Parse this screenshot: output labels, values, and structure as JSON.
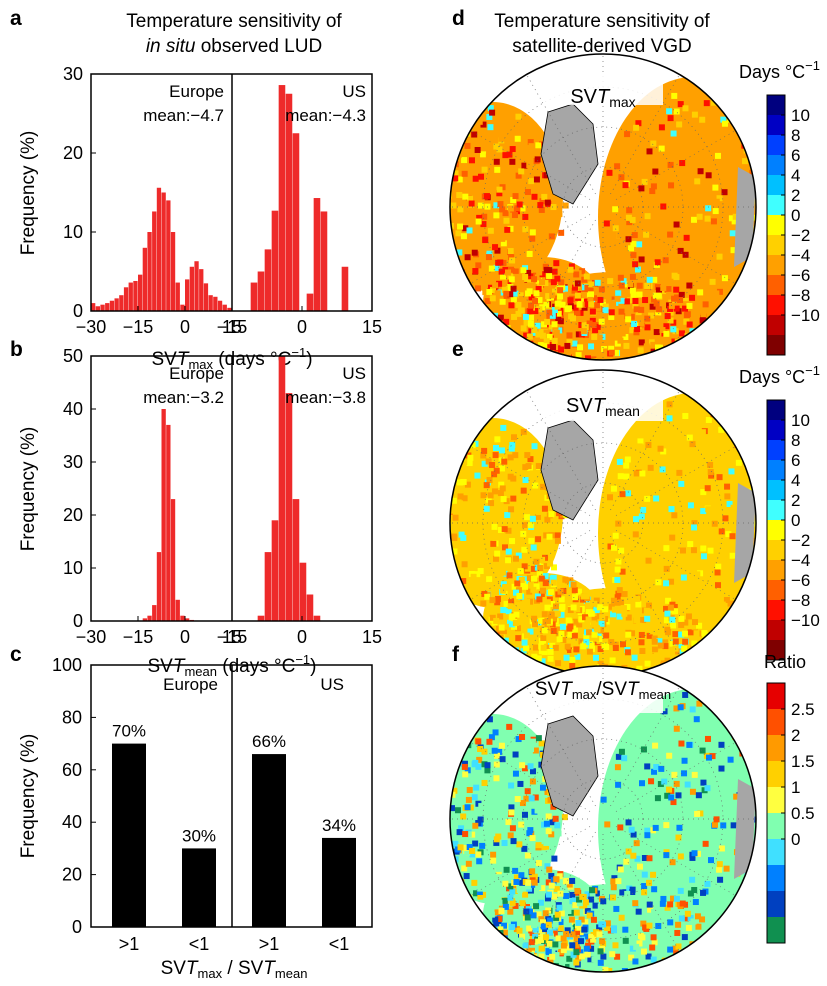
{
  "panel_letters": {
    "a": "a",
    "b": "b",
    "c": "c",
    "d": "d",
    "e": "e",
    "f": "f"
  },
  "titles": {
    "left_line1": "Temperature sensitivity of",
    "left_line2_italic": "in situ",
    "left_line2_rest": " observed LUD",
    "right_line1": "Temperature sensitivity of",
    "right_line2": "satellite-derived VGD"
  },
  "axis_text": {
    "sv": "SV",
    "T": "T",
    "sub_max": "max",
    "sub_mean": "mean",
    "units": " (days °C",
    "units_exp": "−1",
    "units_close": ")",
    "slash": " / ",
    "slash_nospace": "/"
  },
  "colorbar_text": {
    "days": "Days °C",
    "days_exp": "−1",
    "ratio": "Ratio"
  },
  "colors": {
    "bar_red": "#ee2a2a",
    "bar_black": "#000000",
    "land_gray": "#a6a6a6",
    "ocean_white": "#ffffff"
  },
  "chart_data": [
    {
      "id": "a",
      "type": "bar",
      "title": "Temperature sensitivity of in situ observed LUD",
      "xlabel": "SVTmax (days °C−1)",
      "ylabel": "Frequency (%)",
      "ylim": [
        0,
        30
      ],
      "yticks": [
        0,
        10,
        20,
        30
      ],
      "subplots": [
        {
          "name": "Europe",
          "annotation": "mean:−4.7",
          "xlim": [
            -30,
            15
          ],
          "xticks": [
            "−30",
            "−15",
            "0",
            "15"
          ],
          "bin_width": 1.5,
          "bin_starts": [
            -30,
            -28.5,
            -27,
            -25.5,
            -24,
            -22.5,
            -21,
            -19.5,
            -18,
            -16.5,
            -15,
            -13.5,
            -12,
            -10.5,
            -9,
            -7.5,
            -6,
            -4.5,
            -3,
            -1.5,
            0,
            1.5,
            3,
            4.5,
            6,
            7.5,
            9,
            10.5,
            12,
            13.5
          ],
          "values": [
            1,
            0.6,
            0.8,
            1,
            1.3,
            1.6,
            2,
            3,
            3.6,
            3.8,
            4.6,
            8,
            10,
            12.6,
            15.6,
            15,
            14,
            10,
            3.6,
            0.8,
            4,
            5.6,
            6.3,
            5.3,
            3.5,
            2,
            1.8,
            1.3,
            0.8,
            0.4
          ]
        },
        {
          "name": "US",
          "annotation": "mean:−4.3",
          "xlim": [
            -15,
            15
          ],
          "xticks": [
            "−15",
            "0",
            "15"
          ],
          "bin_width": 1.5,
          "bin_starts": [
            -11,
            -9.5,
            -8,
            -6.5,
            -5,
            -3.5,
            -2,
            -0.5,
            1,
            2.5,
            4,
            5.5,
            7,
            8.5
          ],
          "values": [
            3.6,
            5,
            7.8,
            12.7,
            28.6,
            27.5,
            22.5,
            0,
            2.2,
            14.3,
            12.6,
            0,
            0,
            5.6
          ]
        }
      ]
    },
    {
      "id": "b",
      "type": "bar",
      "xlabel": "SVTmean (days °C−1)",
      "ylabel": "Frequency (%)",
      "ylim": [
        0,
        50
      ],
      "yticks": [
        0,
        10,
        20,
        30,
        40,
        50
      ],
      "subplots": [
        {
          "name": "Europe",
          "annotation": "mean:−3.2",
          "xlim": [
            -30,
            15
          ],
          "xticks": [
            "−30",
            "−15",
            "0",
            "15"
          ],
          "bin_width": 1.5,
          "bin_starts": [
            -13.5,
            -12,
            -10.5,
            -9,
            -7.5,
            -6,
            -4.5,
            -3,
            -1.5,
            0,
            1.5,
            3
          ],
          "values": [
            0.5,
            1,
            3,
            13,
            40,
            37,
            23,
            4,
            1,
            0.5,
            0.2,
            0.1
          ]
        },
        {
          "name": "US",
          "annotation": "mean:−3.8",
          "xlim": [
            -15,
            15
          ],
          "xticks": [
            "−15",
            "0",
            "15"
          ],
          "bin_width": 1.5,
          "bin_starts": [
            -9.5,
            -8,
            -6.5,
            -5,
            -3.5,
            -2,
            -0.5,
            1,
            2.5
          ],
          "values": [
            1,
            13,
            19,
            50,
            43,
            23,
            11,
            5,
            1
          ]
        }
      ]
    },
    {
      "id": "c",
      "type": "bar",
      "xlabel": "SVTmax / SVTmean",
      "ylabel": "Frequency (%)",
      "ylim": [
        0,
        100
      ],
      "yticks": [
        0,
        20,
        40,
        60,
        80,
        100
      ],
      "subplots": [
        {
          "name": "Europe",
          "categories": [
            ">1",
            "<1"
          ],
          "values": [
            70,
            30
          ],
          "value_labels": [
            "70%",
            "30%"
          ]
        },
        {
          "name": "US",
          "categories": [
            ">1",
            "<1"
          ],
          "values": [
            66,
            34
          ],
          "value_labels": [
            "66%",
            "34%"
          ]
        }
      ]
    },
    {
      "id": "d",
      "type": "heatmap",
      "map_label": "SVTmax",
      "colorbar_label": "Days °C−1",
      "colorbar_ticks": [
        "10",
        "8",
        "6",
        "4",
        "2",
        "0",
        "−2",
        "−4",
        "−6",
        "−8",
        "−10"
      ],
      "colorbar_colors": [
        "#00007f",
        "#0000c4",
        "#0040ff",
        "#0080ff",
        "#00c0ff",
        "#40ffff",
        "#ffff00",
        "#ffd000",
        "#ffa000",
        "#ff6000",
        "#ff1000",
        "#c00000",
        "#7f0000"
      ]
    },
    {
      "id": "e",
      "type": "heatmap",
      "map_label": "SVTmean",
      "colorbar_label": "Days °C−1",
      "colorbar_ticks": [
        "10",
        "8",
        "6",
        "4",
        "2",
        "0",
        "−2",
        "−4",
        "−6",
        "−8",
        "−10"
      ],
      "colorbar_colors": [
        "#00007f",
        "#0000c4",
        "#0040ff",
        "#0080ff",
        "#00c0ff",
        "#40ffff",
        "#ffff00",
        "#ffd000",
        "#ffa000",
        "#ff6000",
        "#ff1000",
        "#c00000",
        "#7f0000"
      ]
    },
    {
      "id": "f",
      "type": "heatmap",
      "map_label": "SVTmax/SVTmean",
      "colorbar_label": "Ratio",
      "colorbar_ticks": [
        "2.5",
        "2",
        "1.5",
        "1",
        "0.5",
        "0"
      ],
      "colorbar_colors": [
        "#e60000",
        "#ff5000",
        "#ff9a00",
        "#ffd000",
        "#ffff40",
        "#80ffb0",
        "#40e0ff",
        "#0080ff",
        "#0040c0",
        "#109050"
      ]
    }
  ]
}
